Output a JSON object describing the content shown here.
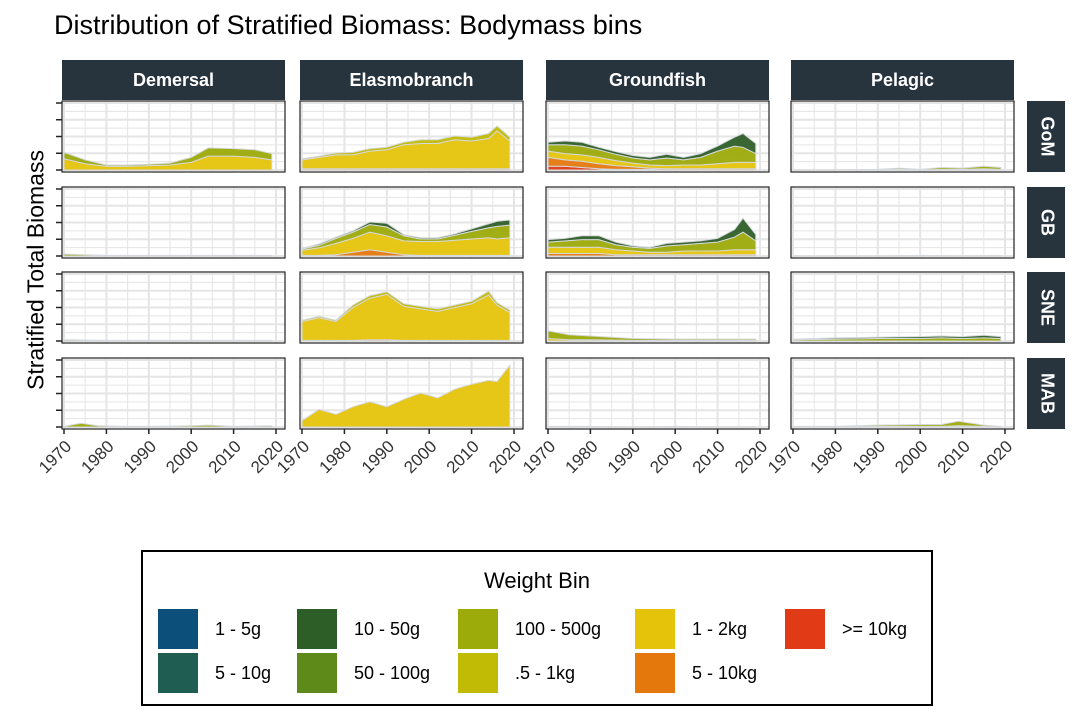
{
  "chart_data": {
    "type": "area",
    "title": "Distribution of Stratified Biomass: Bodymass bins",
    "ylabel": "Stratified Total Biomass",
    "xlabel": "",
    "x_range": [
      1970,
      2020
    ],
    "x_ticks": [
      "1970",
      "1980",
      "1990",
      "2000",
      "2010",
      "2020"
    ],
    "y_range": [
      0,
      100
    ],
    "columns": [
      "Demersal",
      "Elasmobranch",
      "Groundfish",
      "Pelagic"
    ],
    "rows": [
      "GoM",
      "GB",
      "SNE",
      "MAB"
    ],
    "legend": {
      "title": "Weight Bin",
      "position": "bottom",
      "items": [
        {
          "label": "1 - 5g",
          "color": "#0B4F7A"
        },
        {
          "label": "5 - 10g",
          "color": "#1F5C51"
        },
        {
          "label": "10 - 50g",
          "color": "#2E5E27"
        },
        {
          "label": "50 - 100g",
          "color": "#5E8A19"
        },
        {
          "label": "100 - 500g",
          "color": "#9CAA0A"
        },
        {
          "label": ".5 - 1kg",
          "color": "#C2BB05"
        },
        {
          "label": "1 - 2kg",
          "color": "#E5C30A"
        },
        {
          "label": "5 - 10kg",
          "color": "#E5780D"
        },
        {
          "label": ">= 10kg",
          "color": "#E03A16"
        }
      ]
    },
    "panels": [
      {
        "row": "GoM",
        "col": "Demersal",
        "years": [
          1970,
          1975,
          1980,
          1985,
          1990,
          1995,
          2000,
          2004,
          2010,
          2015,
          2019
        ],
        "series": [
          {
            "bin": "100 - 500g",
            "values": [
              10,
              6,
              2,
              2,
              2,
              3,
              8,
              13,
              12,
              12,
              10
            ]
          },
          {
            "bin": "1 - 2kg",
            "values": [
              18,
              10,
              6,
              6,
              7,
              8,
              12,
              22,
              22,
              20,
              16
            ]
          }
        ]
      },
      {
        "row": "GoM",
        "col": "Elasmobranch",
        "years": [
          1970,
          1974,
          1978,
          1982,
          1986,
          1990,
          1994,
          1998,
          2002,
          2006,
          2010,
          2014,
          2016,
          2019
        ],
        "series": [
          {
            "bin": "5 - 10kg",
            "values": [
              2,
              2,
              2,
              2,
              2,
              2,
              2,
              2,
              2,
              2,
              2,
              2,
              2,
              2
            ]
          },
          {
            "bin": "1 - 2kg",
            "values": [
              14,
              18,
              22,
              22,
              28,
              30,
              38,
              40,
              40,
              46,
              44,
              48,
              60,
              44
            ]
          },
          {
            "bin": ".5 - 1kg",
            "values": [
              2,
              2,
              3,
              4,
              4,
              4,
              4,
              6,
              6,
              6,
              6,
              8,
              8,
              6
            ]
          }
        ]
      },
      {
        "row": "GoM",
        "col": "Groundfish",
        "years": [
          1970,
          1974,
          1978,
          1982,
          1986,
          1990,
          1994,
          1998,
          2002,
          2006,
          2010,
          2014,
          2016,
          2019
        ],
        "series": [
          {
            "bin": ">= 10kg",
            "values": [
              6,
              6,
              4,
              2,
              1,
              1,
              1,
              0,
              0,
              0,
              0,
              0,
              0,
              0
            ]
          },
          {
            "bin": "5 - 10kg",
            "values": [
              14,
              10,
              10,
              8,
              6,
              4,
              2,
              2,
              2,
              2,
              2,
              2,
              2,
              2
            ]
          },
          {
            "bin": "1 - 2kg",
            "values": [
              10,
              10,
              10,
              10,
              8,
              6,
              5,
              5,
              6,
              6,
              8,
              10,
              10,
              10
            ]
          },
          {
            "bin": "100 - 500g",
            "values": [
              10,
              14,
              14,
              12,
              10,
              8,
              8,
              12,
              8,
              12,
              20,
              26,
              24,
              14
            ]
          },
          {
            "bin": "10 - 50g",
            "values": [
              4,
              6,
              6,
              4,
              4,
              4,
              4,
              6,
              4,
              6,
              8,
              14,
              22,
              16
            ]
          }
        ]
      },
      {
        "row": "GoM",
        "col": "Pelagic",
        "years": [
          1970,
          1980,
          1990,
          1995,
          2000,
          2005,
          2010,
          2015,
          2019
        ],
        "series": [
          {
            "bin": "100 - 500g",
            "values": [
              0,
              0,
              1,
              2,
              1,
              3,
              2,
              4,
              3
            ]
          },
          {
            "bin": "1 - 2kg",
            "values": [
              0,
              0,
              0,
              1,
              0,
              1,
              1,
              2,
              1
            ]
          }
        ]
      },
      {
        "row": "GB",
        "col": "Demersal",
        "years": [
          1970,
          1980,
          1990,
          2000,
          2010,
          2019
        ],
        "series": [
          {
            "bin": "100 - 500g",
            "values": [
              3,
              1,
              1,
              1,
              1,
              1
            ]
          }
        ]
      },
      {
        "row": "GB",
        "col": "Elasmobranch",
        "years": [
          1970,
          1974,
          1978,
          1982,
          1986,
          1990,
          1994,
          1998,
          2002,
          2006,
          2010,
          2014,
          2016,
          2019
        ],
        "series": [
          {
            "bin": "5 - 10kg",
            "values": [
              1,
              1,
              2,
              6,
              10,
              6,
              2,
              1,
              1,
              1,
              1,
              1,
              1,
              1
            ]
          },
          {
            "bin": "1 - 2kg",
            "values": [
              8,
              12,
              18,
              22,
              28,
              26,
              22,
              22,
              22,
              24,
              26,
              28,
              26,
              28
            ]
          },
          {
            "bin": "100 - 500g",
            "values": [
              2,
              4,
              8,
              10,
              12,
              14,
              8,
              4,
              4,
              8,
              12,
              16,
              20,
              20
            ]
          },
          {
            "bin": "10 - 50g",
            "values": [
              1,
              2,
              2,
              2,
              4,
              6,
              2,
              2,
              2,
              2,
              4,
              6,
              8,
              8
            ]
          }
        ]
      },
      {
        "row": "GB",
        "col": "Groundfish",
        "years": [
          1970,
          1974,
          1978,
          1982,
          1986,
          1990,
          1994,
          1998,
          2002,
          2006,
          2010,
          2014,
          2016,
          2019
        ],
        "series": [
          {
            "bin": "5 - 10kg",
            "values": [
              4,
              4,
              4,
              4,
              2,
              2,
              2,
              2,
              2,
              2,
              2,
              2,
              2,
              2
            ]
          },
          {
            "bin": "1 - 2kg",
            "values": [
              10,
              10,
              10,
              10,
              8,
              6,
              4,
              4,
              6,
              6,
              6,
              8,
              8,
              8
            ]
          },
          {
            "bin": "100 - 500g",
            "values": [
              8,
              10,
              12,
              12,
              8,
              6,
              6,
              10,
              10,
              12,
              14,
              20,
              28,
              14
            ]
          },
          {
            "bin": "10 - 50g",
            "values": [
              4,
              4,
              6,
              6,
              4,
              2,
              2,
              4,
              4,
              4,
              6,
              12,
              22,
              10
            ]
          }
        ]
      },
      {
        "row": "GB",
        "col": "Pelagic",
        "years": [
          1970,
          1980,
          1990,
          2000,
          2010,
          2019
        ],
        "series": [
          {
            "bin": "100 - 500g",
            "values": [
              0,
              0,
              0,
              1,
              0,
              1
            ]
          }
        ]
      },
      {
        "row": "SNE",
        "col": "Demersal",
        "years": [
          1970,
          1980,
          1990,
          2000,
          2010,
          2019
        ],
        "series": [
          {
            "bin": "100 - 500g",
            "values": [
              2,
              1,
              1,
              1,
              1,
              1
            ]
          }
        ]
      },
      {
        "row": "SNE",
        "col": "Elasmobranch",
        "years": [
          1970,
          1974,
          1978,
          1982,
          1986,
          1990,
          1994,
          1998,
          2002,
          2006,
          2010,
          2014,
          2016,
          2019
        ],
        "series": [
          {
            "bin": "5 - 10kg",
            "values": [
              1,
              1,
              1,
              1,
              2,
              2,
              1,
              1,
              1,
              1,
              1,
              1,
              1,
              1
            ]
          },
          {
            "bin": "1 - 2kg",
            "values": [
              30,
              36,
              30,
              52,
              66,
              72,
              54,
              50,
              46,
              52,
              58,
              72,
              56,
              44
            ]
          },
          {
            "bin": ".5 - 1kg",
            "values": [
              2,
              2,
              2,
              4,
              4,
              4,
              4,
              4,
              4,
              4,
              4,
              6,
              4,
              4
            ]
          }
        ]
      },
      {
        "row": "SNE",
        "col": "Groundfish",
        "years": [
          1970,
          1975,
          1980,
          1990,
          2000,
          2010,
          2019
        ],
        "series": [
          {
            "bin": "100 - 500g",
            "values": [
              12,
              8,
              6,
              3,
              2,
              2,
              2
            ]
          },
          {
            "bin": "1 - 2kg",
            "values": [
              4,
              2,
              2,
              1,
              1,
              1,
              1
            ]
          }
        ]
      },
      {
        "row": "SNE",
        "col": "Pelagic",
        "years": [
          1970,
          1980,
          1990,
          2000,
          2005,
          2010,
          2015,
          2019
        ],
        "series": [
          {
            "bin": "100 - 500g",
            "values": [
              2,
              3,
              4,
              4,
              5,
              4,
              5,
              4
            ]
          },
          {
            "bin": "10 - 50g",
            "values": [
              1,
              2,
              2,
              3,
              3,
              3,
              4,
              3
            ]
          }
        ]
      },
      {
        "row": "MAB",
        "col": "Demersal",
        "years": [
          1970,
          1974,
          1978,
          1985,
          1990,
          2000,
          2004,
          2010,
          2019
        ],
        "series": [
          {
            "bin": "100 - 500g",
            "values": [
              1,
              6,
              2,
              1,
              1,
              2,
              3,
              1,
              2
            ]
          }
        ]
      },
      {
        "row": "MAB",
        "col": "Elasmobranch",
        "years": [
          1970,
          1974,
          1978,
          1982,
          1986,
          1990,
          1994,
          1998,
          2002,
          2006,
          2010,
          2014,
          2016,
          2019
        ],
        "series": [
          {
            "bin": "1 - 2kg",
            "values": [
              10,
              28,
              20,
              32,
              40,
              32,
              44,
              54,
              46,
              60,
              68,
              74,
              72,
              98
            ]
          }
        ]
      },
      {
        "row": "MAB",
        "col": "Groundfish",
        "years": [
          1970,
          1980,
          1990,
          2000,
          2010,
          2019
        ],
        "series": [
          {
            "bin": "100 - 500g",
            "values": [
              1,
              1,
              0,
              1,
              0,
              0
            ]
          }
        ]
      },
      {
        "row": "MAB",
        "col": "Pelagic",
        "years": [
          1970,
          1980,
          1990,
          2000,
          2005,
          2009,
          2015,
          2019
        ],
        "series": [
          {
            "bin": "100 - 500g",
            "values": [
              1,
              1,
              2,
              3,
              3,
              7,
              2,
              1
            ]
          },
          {
            "bin": ".5 - 1kg",
            "values": [
              0,
              0,
              1,
              1,
              1,
              2,
              1,
              0
            ]
          }
        ]
      }
    ]
  }
}
